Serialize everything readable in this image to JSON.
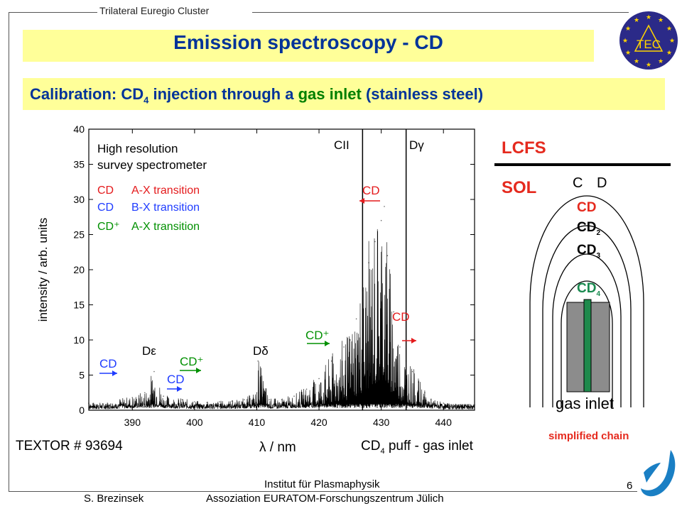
{
  "header": {
    "cluster": "Trilateral Euregio Cluster",
    "title": "Emission spectroscopy - CD",
    "subtitle_prefix": "Calibration: CD",
    "subtitle_sub": "4",
    "subtitle_middle": " injection through a ",
    "subtitle_green": "gas inlet",
    "subtitle_suffix": " (stainless steel)",
    "logo_text": "TEC"
  },
  "chart_data": {
    "type": "line",
    "xlabel": "λ / nm",
    "ylabel": "intensity / arb. units",
    "xlim": [
      383,
      445
    ],
    "ylim": [
      0,
      40
    ],
    "xticks": [
      390,
      400,
      410,
      420,
      430,
      440
    ],
    "yticks": [
      0,
      5,
      10,
      15,
      20,
      25,
      30,
      35,
      40
    ],
    "legend": {
      "title_line1": "High resolution",
      "title_line2": "survey spectrometer",
      "entries": [
        {
          "species": "CD",
          "transition": "A-X transition",
          "color": "#e41a1c"
        },
        {
          "species": "CD",
          "transition": "B-X transition",
          "color": "#1f3cff"
        },
        {
          "species": "CD⁺",
          "transition": "A-X transition",
          "color": "#009000"
        }
      ]
    },
    "series": [
      {
        "x": [
          383,
          386,
          388,
          390,
          392,
          393.5,
          395,
          398,
          400,
          402,
          404,
          406,
          408,
          410,
          410.2,
          412,
          414,
          416,
          418,
          420,
          422,
          424,
          425,
          426,
          427,
          428,
          429,
          430,
          430.5,
          431,
          432,
          433,
          434,
          435,
          436,
          437,
          438,
          440,
          442,
          445
        ],
        "y": [
          1,
          1,
          1.5,
          1.8,
          2.5,
          5.5,
          2,
          1.5,
          1.2,
          1.1,
          1.2,
          1.3,
          1.5,
          2.5,
          7,
          1.5,
          1.5,
          2,
          3,
          4.5,
          7,
          9,
          10,
          13,
          17,
          21,
          24,
          27,
          29,
          22,
          14,
          9,
          7,
          5.5,
          4,
          2.5,
          1.5,
          1,
          0.8,
          0.8
        ]
      }
    ],
    "annotations": [
      {
        "text": "CII",
        "x": 427,
        "color": "#000000"
      },
      {
        "text": "Dγ",
        "x": 434,
        "color": "#000000"
      },
      {
        "text": "Dε",
        "x": 397,
        "color": "#000000"
      },
      {
        "text": "Dδ",
        "x": 410.2,
        "color": "#000000"
      },
      {
        "text": "CD",
        "x": 430.5,
        "color": "#e41a1c"
      },
      {
        "text": "CD",
        "x": 434.5,
        "color": "#e41a1c"
      },
      {
        "text": "CD",
        "x": 386,
        "color": "#1f3cff"
      },
      {
        "text": "CD",
        "x": 396,
        "color": "#1f3cff"
      },
      {
        "text": "CD⁺",
        "x": 402,
        "color": "#009000"
      },
      {
        "text": "CD⁺",
        "x": 421,
        "color": "#009000"
      }
    ]
  },
  "footer": {
    "textor": "TEXTOR # 93694",
    "puff_prefix": "CD",
    "puff_sub": "4",
    "puff_suffix": " puff - gas inlet",
    "institute_line1": "Institut für Plasmaphysik",
    "institute_line2": "Assoziation EURATOM-Forschungszentrum Jülich",
    "author": "S. Brezinsek",
    "page": "6"
  },
  "diagram": {
    "lcfs": "LCFS",
    "sol": "SOL",
    "c_label": "C",
    "d_label": "D",
    "chain": [
      {
        "label": "CD",
        "sub": "",
        "color": "#e52a1e"
      },
      {
        "label": "CD",
        "sub": "2",
        "color": "#000000"
      },
      {
        "label": "CD",
        "sub": "3",
        "color": "#000000"
      },
      {
        "label": "CD",
        "sub": "4",
        "color": "#1a8a50"
      }
    ],
    "gas_inlet": "gas inlet",
    "caption": "simplified chain"
  }
}
